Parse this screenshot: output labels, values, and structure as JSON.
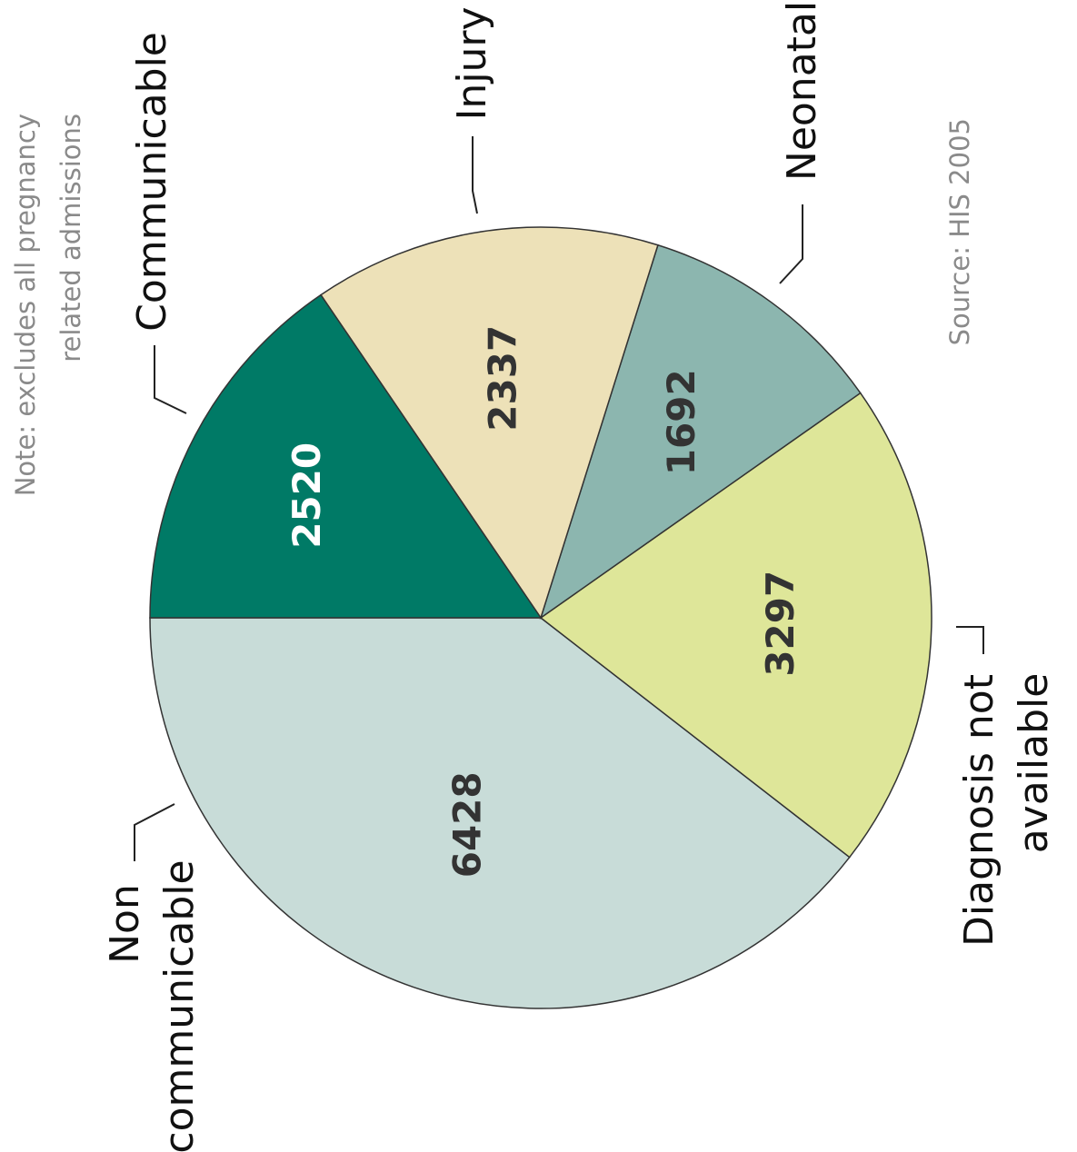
{
  "chart_data": {
    "type": "pie",
    "categories": [
      "Communicable",
      "Injury",
      "Neonatal",
      "Diagnosis not available",
      "Non communicable"
    ],
    "values": [
      2520,
      2337,
      1692,
      3297,
      6428
    ],
    "colors": [
      "#007a66",
      "#ede1b8",
      "#8cb6af",
      "#dee699",
      "#c8dcd8"
    ],
    "label_colors": [
      "#ffffff",
      "#333333",
      "#333333",
      "#333333",
      "#333333"
    ],
    "note": [
      "Note: excludes all pregnancy",
      "related admissions"
    ],
    "source": "Source: HIS 2005"
  }
}
